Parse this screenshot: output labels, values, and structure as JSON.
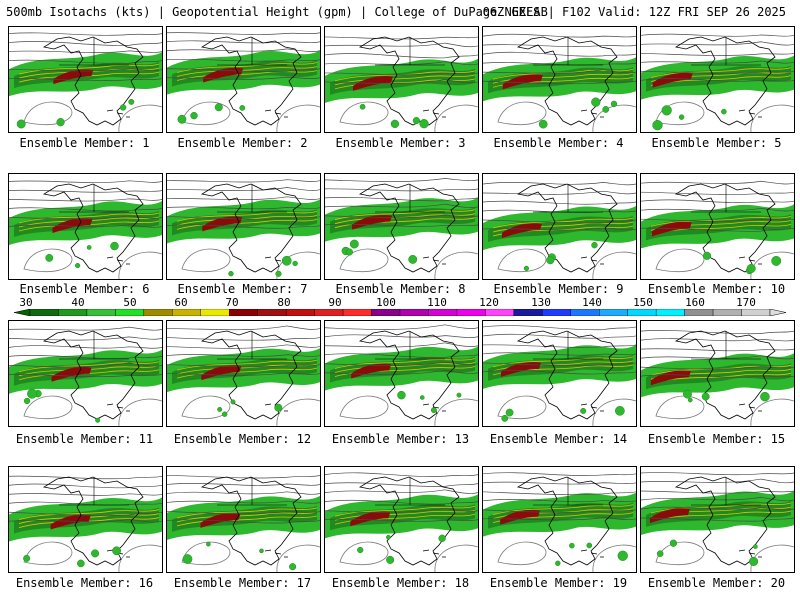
{
  "header": {
    "left": "500mb Isotachs (kts) | Geopotential Height (gpm) | College of DuPage NEXLAB",
    "right": "06Z GEFS | F102 Valid: 12Z FRI SEP 26 2025"
  },
  "colorbar": {
    "labels": [
      "30",
      "40",
      "50",
      "60",
      "70",
      "80",
      "90",
      "100",
      "110",
      "120",
      "130",
      "140",
      "150",
      "160",
      "170"
    ],
    "colors": [
      "#0f6b0f",
      "#1f9a1f",
      "#39c039",
      "#22e022",
      "#a08a00",
      "#c8b400",
      "#e8e800",
      "#8b0000",
      "#a01010",
      "#c01010",
      "#e02020",
      "#ff2a2a",
      "#8a008a",
      "#b000b0",
      "#d400d4",
      "#ee00ee",
      "#ff44ff",
      "#1a1aa0",
      "#1e3cff",
      "#1e78ff",
      "#1eaaff",
      "#00d8ff",
      "#00f0ff",
      "#909090",
      "#b0b0b0",
      "#d0d0d0"
    ]
  },
  "panels": [
    {
      "label": "Ensemble Member: 1"
    },
    {
      "label": "Ensemble Member: 2"
    },
    {
      "label": "Ensemble Member: 3"
    },
    {
      "label": "Ensemble Member: 4"
    },
    {
      "label": "Ensemble Member: 5"
    },
    {
      "label": "Ensemble Member: 6"
    },
    {
      "label": "Ensemble Member: 7"
    },
    {
      "label": "Ensemble Member: 8"
    },
    {
      "label": "Ensemble Member: 9"
    },
    {
      "label": "Ensemble Member: 10"
    },
    {
      "label": "Ensemble Member: 11"
    },
    {
      "label": "Ensemble Member: 12"
    },
    {
      "label": "Ensemble Member: 13"
    },
    {
      "label": "Ensemble Member: 14"
    },
    {
      "label": "Ensemble Member: 15"
    },
    {
      "label": "Ensemble Member: 16"
    },
    {
      "label": "Ensemble Member: 17"
    },
    {
      "label": "Ensemble Member: 18"
    },
    {
      "label": "Ensemble Member: 19"
    },
    {
      "label": "Ensemble Member: 20"
    }
  ],
  "map_colors": {
    "jet_light": "#2db82d",
    "jet_mid": "#1f8a1f",
    "jet_core": "#8b0a0a",
    "jet_yellow": "#d7c600",
    "height_contour": "#7a7a7a",
    "coastline": "#000000"
  }
}
